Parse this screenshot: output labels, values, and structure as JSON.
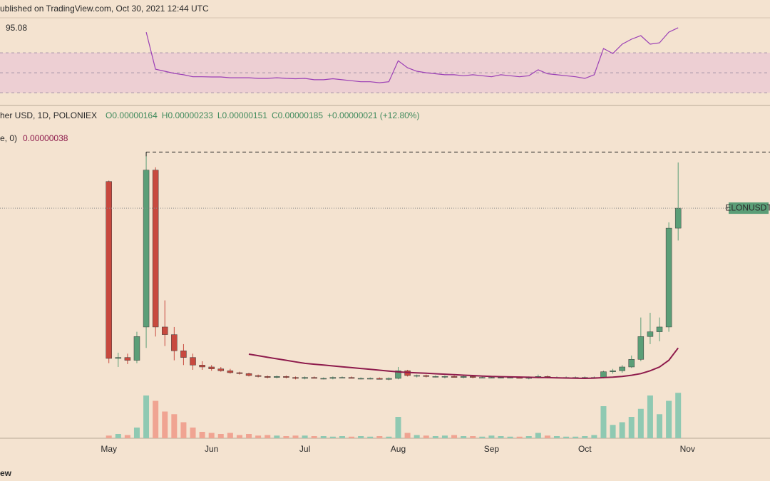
{
  "chart_data": {
    "type": "candlestick",
    "published": "ublished on TradingView.com, Oct 30, 2021 12:44 UTC",
    "legend": {
      "symbol": "her USD, 1D, POLONIEX",
      "ohlc": [
        "O0.00000164",
        "H0.00000233",
        "L0.00000151",
        "C0.00000185",
        "+0.00000021 (+12.80%)"
      ],
      "color": "#3f8a5c"
    },
    "price_tag": "ELONUSDT",
    "footer": "ew",
    "up_color": "#5b9e77",
    "down_color": "#c8493e",
    "volume_up_color": "#8fc9b2",
    "volume_down_color": "#f0a492",
    "categories": [
      "May",
      null,
      null,
      null,
      null,
      null,
      null,
      null,
      null,
      null,
      null,
      "Jun",
      null,
      null,
      null,
      null,
      null,
      null,
      null,
      null,
      null,
      "Jul",
      null,
      null,
      null,
      null,
      null,
      null,
      null,
      null,
      null,
      "Aug",
      null,
      null,
      null,
      null,
      null,
      null,
      null,
      null,
      null,
      "Sep",
      null,
      null,
      null,
      null,
      null,
      null,
      null,
      null,
      null,
      "Oct",
      null,
      null,
      null,
      null,
      null,
      null,
      null,
      null,
      null,
      null,
      "Nov",
      null,
      null
    ],
    "ylim": [
      0,
      2.54e-06
    ],
    "open": [
      2.13e-06,
      2.7e-07,
      2.8e-07,
      2.5e-07,
      6e-07,
      2.25e-06,
      6e-07,
      5.2e-07,
      3.5e-07,
      2.8e-07,
      2e-07,
      1.8e-07,
      1.6e-07,
      1.4e-07,
      1.2e-07,
      1.1e-07,
      9e-08,
      8e-08,
      7e-08,
      8e-08,
      7e-08,
      6e-08,
      7e-08,
      6e-08,
      6e-08,
      7e-08,
      7e-08,
      6e-08,
      6e-08,
      6e-08,
      5e-08,
      6e-08,
      1.4e-07,
      9e-08,
      9e-08,
      8e-08,
      8e-08,
      8e-08,
      7e-08,
      8e-08,
      7e-08,
      7e-08,
      7e-08,
      7e-08,
      7e-08,
      6e-08,
      7e-08,
      8e-08,
      7e-08,
      7e-08,
      7e-08,
      7e-08,
      7e-08,
      7e-08,
      1.3e-07,
      1.4e-07,
      1.8e-07,
      2.6e-07,
      5e-07,
      5.5e-07,
      6e-07,
      1.64e-06,
      null,
      null,
      null
    ],
    "high": [
      2.14e-06,
      3.3e-07,
      3.2e-07,
      5.5e-07,
      2.44e-06,
      2.28e-06,
      8.8e-07,
      6e-07,
      4.2e-07,
      3.2e-07,
      2.4e-07,
      2e-07,
      1.8e-07,
      1.6e-07,
      1.3e-07,
      1.2e-07,
      1e-07,
      9e-08,
      9e-08,
      9e-08,
      8e-08,
      8e-08,
      8e-08,
      7e-08,
      8e-08,
      8e-08,
      8e-08,
      7e-08,
      7e-08,
      7e-08,
      7e-08,
      1.8e-07,
      1.5e-07,
      1e-07,
      1e-07,
      9e-08,
      9e-08,
      9e-08,
      9e-08,
      9e-08,
      8e-08,
      8e-08,
      8e-08,
      8e-08,
      8e-08,
      8e-08,
      1e-07,
      9e-08,
      8e-08,
      8e-08,
      8e-08,
      8e-08,
      8e-08,
      1.4e-07,
      1.6e-07,
      2e-07,
      3e-07,
      7e-07,
      7.5e-07,
      7e-07,
      1.7e-06,
      2.33e-06,
      null,
      null,
      null
    ],
    "low": [
      2.2e-07,
      1.8e-07,
      2.1e-07,
      2.2e-07,
      3.8e-07,
      5e-07,
      4e-07,
      2.5e-07,
      2e-07,
      1.5e-07,
      1.5e-07,
      1.4e-07,
      1.3e-07,
      1.1e-07,
      1e-07,
      8e-08,
      7e-08,
      6e-08,
      6e-08,
      6e-08,
      5e-08,
      5e-08,
      6e-08,
      5e-08,
      5e-08,
      6e-08,
      6e-08,
      5e-08,
      5e-08,
      5e-08,
      4e-08,
      5e-08,
      8e-08,
      7e-08,
      7e-08,
      7e-08,
      6e-08,
      7e-08,
      6e-08,
      6e-08,
      6e-08,
      6e-08,
      6e-08,
      6e-08,
      6e-08,
      5e-08,
      6e-08,
      6e-08,
      6e-08,
      6e-08,
      6e-08,
      6e-08,
      6e-08,
      6e-08,
      1.1e-07,
      1.2e-07,
      1.7e-07,
      2.4e-07,
      4.2e-07,
      4.5e-07,
      5.5e-07,
      1.51e-06,
      null,
      null,
      null
    ],
    "close": [
      2.7e-07,
      2.8e-07,
      2.5e-07,
      5e-07,
      2.25e-06,
      6e-07,
      5.2e-07,
      3.5e-07,
      2.8e-07,
      2e-07,
      1.8e-07,
      1.6e-07,
      1.4e-07,
      1.2e-07,
      1.1e-07,
      9e-08,
      8e-08,
      7e-08,
      8e-08,
      7e-08,
      6e-08,
      7e-08,
      6e-08,
      6e-08,
      7e-08,
      7e-08,
      6e-08,
      6e-08,
      6e-08,
      5e-08,
      6e-08,
      1.4e-07,
      9e-08,
      9e-08,
      8e-08,
      8e-08,
      8e-08,
      7e-08,
      8e-08,
      7e-08,
      7e-08,
      7e-08,
      7e-08,
      7e-08,
      6e-08,
      7e-08,
      8e-08,
      7e-08,
      7e-08,
      7e-08,
      7e-08,
      7e-08,
      7e-08,
      1.3e-07,
      1.4e-07,
      1.8e-07,
      2.6e-07,
      5e-07,
      5.5e-07,
      6e-07,
      1.64e-06,
      1.85e-06,
      null,
      null,
      null
    ],
    "volume": {
      "ylim": [
        0,
        100
      ],
      "values": [
        5,
        8,
        6,
        20,
        80,
        70,
        50,
        45,
        30,
        20,
        12,
        10,
        8,
        10,
        6,
        8,
        5,
        6,
        5,
        4,
        5,
        5,
        4,
        4,
        3,
        4,
        3,
        4,
        3,
        4,
        3,
        40,
        10,
        6,
        5,
        4,
        5,
        6,
        4,
        4,
        3,
        5,
        4,
        3,
        3,
        4,
        10,
        5,
        4,
        3,
        3,
        4,
        6,
        60,
        25,
        30,
        40,
        55,
        80,
        45,
        70,
        85,
        null,
        null,
        null
      ]
    },
    "ma": {
      "name": "e, 0)",
      "label": "0.00000038",
      "color": "#8e1b4c",
      "values": [
        null,
        null,
        null,
        null,
        null,
        null,
        null,
        null,
        null,
        null,
        null,
        null,
        null,
        null,
        null,
        3.15e-07,
        2.99e-07,
        2.82e-07,
        2.66e-07,
        2.5e-07,
        2.34e-07,
        2.18e-07,
        2.09e-07,
        2e-07,
        1.91e-07,
        1.82e-07,
        1.73e-07,
        1.64e-07,
        1.55e-07,
        1.46e-07,
        1.37e-07,
        1.28e-07,
        1.23e-07,
        1.18e-07,
        1.14e-07,
        1.09e-07,
        1.04e-07,
        9.9e-08,
        9.4e-08,
        9e-08,
        8.5e-08,
        8e-08,
        7.8e-08,
        7.6e-08,
        7.4e-08,
        7.2e-08,
        7e-08,
        6.8e-08,
        6.6e-08,
        6.4e-08,
        6.2e-08,
        6e-08,
        6.3e-08,
        6.8e-08,
        7.3e-08,
        8e-08,
        9.3e-08,
        1.1e-07,
        1.4e-07,
        1.8e-07,
        2.5e-07,
        3.8e-07,
        null,
        null,
        null
      ]
    },
    "rsi": {
      "color": "#9b3fb5",
      "ylim": [
        18,
        105
      ],
      "levels": [
        70,
        50,
        30
      ],
      "values": [
        null,
        null,
        null,
        null,
        90.7,
        53.6,
        51.5,
        49.4,
        48,
        46,
        46,
        45.8,
        45.8,
        45,
        45,
        45,
        44.4,
        44.4,
        45,
        44.4,
        44,
        44.4,
        43,
        43,
        44,
        43,
        42,
        41,
        41,
        40,
        41,
        62,
        55,
        51.5,
        50,
        49,
        48,
        48,
        47,
        48,
        47,
        46,
        48,
        47,
        46,
        47,
        53,
        49,
        48,
        47,
        46,
        44.4,
        48,
        74.3,
        69.3,
        78.6,
        83.6,
        87.2,
        78.6,
        80,
        90.7,
        95.08,
        null,
        null,
        null
      ]
    }
  }
}
